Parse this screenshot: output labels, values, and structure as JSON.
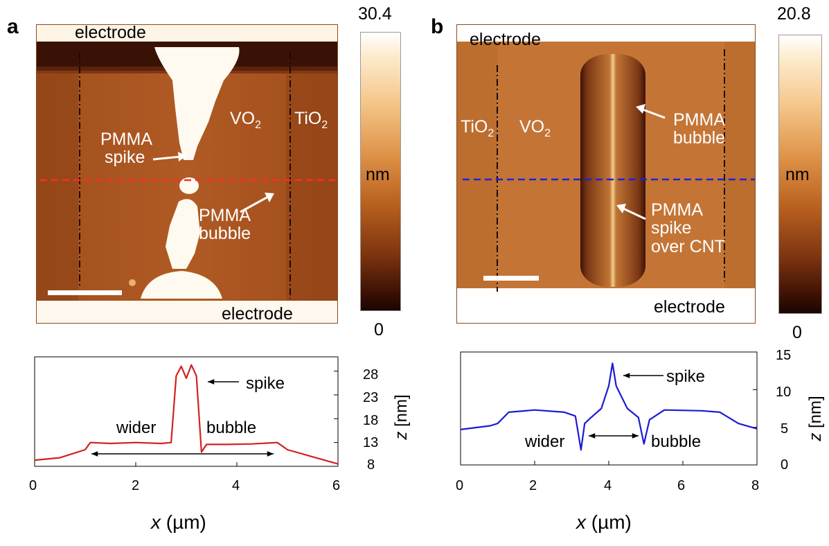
{
  "panel_a": {
    "letter": "a",
    "labels": {
      "electrode_top": "electrode",
      "electrode_bottom": "electrode",
      "vo2": "VO",
      "vo2_sub": "2",
      "tio2": "TiO",
      "tio2_sub": "2",
      "pmma_spike_1": "PMMA",
      "pmma_spike_2": "spike",
      "pmma_bubble_1": "PMMA",
      "pmma_bubble_2": "bubble"
    },
    "colorbar": {
      "max": "30.4",
      "min": "0",
      "unit": "nm"
    },
    "profile": {
      "x_ticks": [
        "0",
        "2",
        "4",
        "6"
      ],
      "y_ticks": [
        "28",
        "23",
        "18",
        "13",
        "8"
      ],
      "ylabel_var": "z",
      "ylabel_unit": " [nm]",
      "xlabel_var": "x",
      "xlabel_unit": " (µm)",
      "ann_spike": "spike",
      "ann_wider": "wider",
      "ann_bubble": "bubble",
      "color": "#d42020"
    }
  },
  "panel_b": {
    "letter": "b",
    "labels": {
      "electrode_top": "electrode",
      "electrode_bottom": "electrode",
      "vo2": "VO",
      "vo2_sub": "2",
      "tio2": "TiO",
      "tio2_sub": "2",
      "pmma_bubble_1": "PMMA",
      "pmma_bubble_2": "bubble",
      "pmma_spike_1": "PMMA",
      "pmma_spike_2": "spike",
      "pmma_spike_3": "over CNT"
    },
    "colorbar": {
      "max": "20.8",
      "min": "0",
      "unit": "nm"
    },
    "profile": {
      "x_ticks": [
        "0",
        "2",
        "4",
        "6",
        "8"
      ],
      "y_ticks": [
        "15",
        "10",
        "5",
        "0"
      ],
      "ylabel_var": "z",
      "ylabel_unit": " [nm]",
      "xlabel_var": "x",
      "xlabel_unit": " (µm)",
      "ann_spike": "spike",
      "ann_wider": "wider",
      "ann_bubble": "bubble",
      "color": "#1a1ad6"
    }
  },
  "chart_data": [
    {
      "type": "line",
      "panel": "a",
      "xlabel": "x (µm)",
      "ylabel": "z [nm]",
      "xlim": [
        0,
        6
      ],
      "ylim": [
        8,
        31
      ],
      "x": [
        0,
        0.5,
        1.0,
        1.1,
        1.5,
        2.0,
        2.5,
        2.7,
        2.8,
        2.9,
        3.0,
        3.1,
        3.2,
        3.3,
        3.4,
        3.8,
        4.3,
        4.8,
        5.0,
        5.5,
        6.0
      ],
      "y": [
        9.3,
        9.8,
        11.5,
        13.0,
        12.8,
        13.0,
        12.8,
        13.0,
        27.0,
        29.0,
        26.5,
        29.3,
        27.0,
        11.0,
        12.6,
        12.6,
        12.7,
        13.0,
        11.5,
        10.0,
        8.5
      ]
    },
    {
      "type": "line",
      "panel": "b",
      "xlabel": "x (µm)",
      "ylabel": "z [nm]",
      "xlim": [
        0,
        8
      ],
      "ylim": [
        0,
        15
      ],
      "x": [
        0,
        0.8,
        1.0,
        1.3,
        2.0,
        2.8,
        3.1,
        3.25,
        3.35,
        3.5,
        3.8,
        4.0,
        4.1,
        4.2,
        4.5,
        4.8,
        4.95,
        5.1,
        5.5,
        6.5,
        7.0,
        7.5,
        8.0
      ],
      "y": [
        4.7,
        5.2,
        5.5,
        7.0,
        7.3,
        7.0,
        6.5,
        2.0,
        5.5,
        6.2,
        7.5,
        10.5,
        13.5,
        10.5,
        7.5,
        6.3,
        2.8,
        6.0,
        7.3,
        7.2,
        7.0,
        5.5,
        4.8
      ]
    }
  ]
}
